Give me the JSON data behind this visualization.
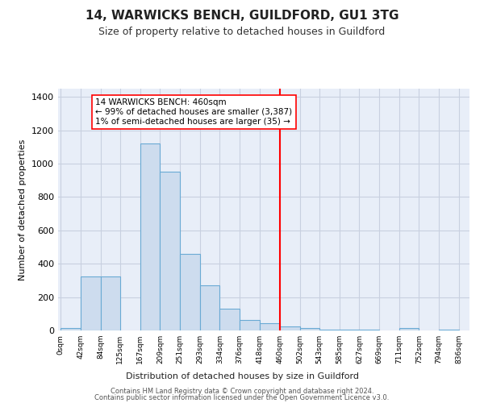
{
  "title": "14, WARWICKS BENCH, GUILDFORD, GU1 3TG",
  "subtitle": "Size of property relative to detached houses in Guildford",
  "xlabel": "Distribution of detached houses by size in Guildford",
  "ylabel": "Number of detached properties",
  "bar_color": "#cddcee",
  "bar_edge_color": "#6aaad4",
  "grid_color": "#c8d0e0",
  "background_color": "#e8eef8",
  "red_line_x": 460,
  "annotation_text": "14 WARWICKS BENCH: 460sqm\n← 99% of detached houses are smaller (3,387)\n1% of semi-detached houses are larger (35) →",
  "bin_edges": [
    0,
    42,
    84,
    125,
    167,
    209,
    251,
    293,
    334,
    376,
    418,
    460,
    502,
    543,
    585,
    627,
    669,
    711,
    752,
    794,
    836
  ],
  "bin_counts": [
    15,
    325,
    325,
    0,
    1120,
    950,
    460,
    270,
    130,
    65,
    45,
    25,
    15,
    5,
    5,
    5,
    0,
    15,
    0,
    5
  ],
  "ylim": [
    0,
    1450
  ],
  "yticks": [
    0,
    200,
    400,
    600,
    800,
    1000,
    1200,
    1400
  ],
  "tick_labels": [
    "0sqm",
    "42sqm",
    "84sqm",
    "125sqm",
    "167sqm",
    "209sqm",
    "251sqm",
    "293sqm",
    "334sqm",
    "376sqm",
    "418sqm",
    "460sqm",
    "502sqm",
    "543sqm",
    "585sqm",
    "627sqm",
    "669sqm",
    "711sqm",
    "752sqm",
    "794sqm",
    "836sqm"
  ],
  "tick_positions": [
    0,
    42,
    84,
    125,
    167,
    209,
    251,
    293,
    334,
    376,
    418,
    460,
    502,
    543,
    585,
    627,
    669,
    711,
    752,
    794,
    836
  ],
  "footer_line1": "Contains HM Land Registry data © Crown copyright and database right 2024.",
  "footer_line2": "Contains public sector information licensed under the Open Government Licence v3.0."
}
